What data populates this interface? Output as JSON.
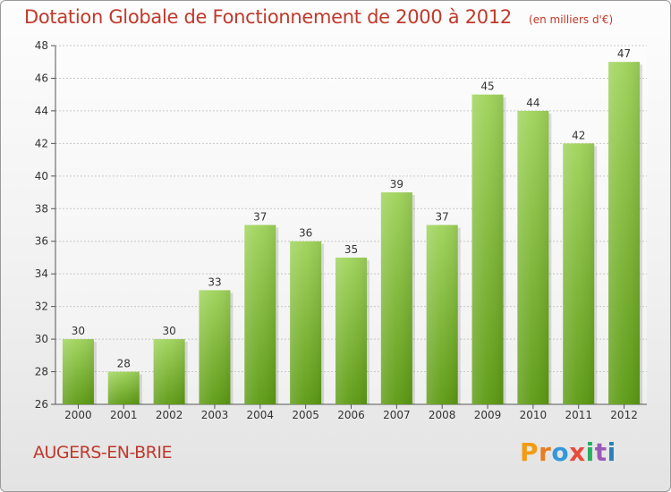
{
  "header": {
    "title": "Dotation Globale de Fonctionnement de 2000 à 2012",
    "subtitle": "(en milliers d'€)"
  },
  "footer": {
    "commune": "AUGERS-EN-BRIE",
    "logo_text": "Proxiti",
    "logo_colors": [
      "#f39c12",
      "#e67e22",
      "#3498db",
      "#e74c3c",
      "#27ae60",
      "#9b59b6",
      "#2980b9"
    ]
  },
  "colors": {
    "bar_top": "#9fd35a",
    "bar_bottom": "#5c9a12",
    "title": "#c0392b",
    "grid": "#c8c8c8"
  },
  "chart_data": {
    "type": "bar",
    "title": "Dotation Globale de Fonctionnement de 2000 à 2012",
    "subtitle": "(en milliers d'€)",
    "categories": [
      "2000",
      "2001",
      "2002",
      "2003",
      "2004",
      "2005",
      "2006",
      "2007",
      "2008",
      "2009",
      "2010",
      "2011",
      "2012"
    ],
    "values": [
      30,
      28,
      30,
      33,
      37,
      36,
      35,
      39,
      37,
      45,
      44,
      42,
      47
    ],
    "ylim": [
      26,
      48
    ],
    "yticks": [
      26,
      28,
      30,
      32,
      34,
      36,
      38,
      40,
      42,
      44,
      46,
      48
    ],
    "grid": true,
    "legend": "none"
  }
}
